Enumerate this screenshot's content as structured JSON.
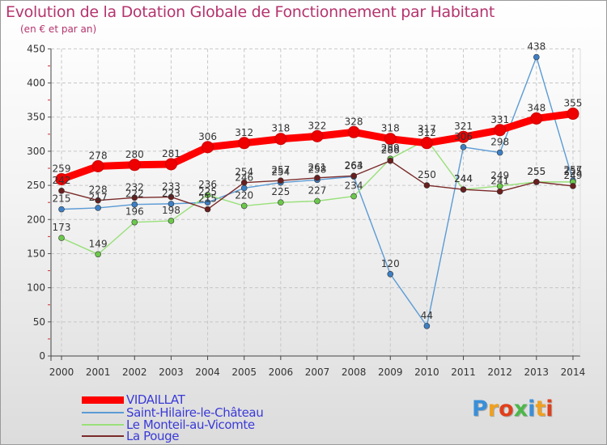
{
  "chart_data": {
    "type": "line",
    "title": "Evolution de la Dotation Globale de Fonctionnement par Habitant",
    "subtitle": "(en € et par an)",
    "xlabel": "",
    "ylabel": "",
    "ylim": [
      0,
      450
    ],
    "yticks": [
      0,
      50,
      100,
      150,
      200,
      250,
      300,
      350,
      400,
      450
    ],
    "categories": [
      "2000",
      "2001",
      "2002",
      "2003",
      "2004",
      "2005",
      "2006",
      "2007",
      "2008",
      "2009",
      "2010",
      "2011",
      "2012",
      "2013",
      "2014"
    ],
    "grid": true,
    "legend_position": "bottom-left",
    "series": [
      {
        "name": "VIDAILLAT",
        "color": "#ff0000",
        "marker_color": "#ee0000",
        "thick": true,
        "values": [
          259,
          278,
          280,
          281,
          306,
          312,
          318,
          322,
          328,
          318,
          312,
          321,
          331,
          348,
          355
        ]
      },
      {
        "name": "Saint-Hilaire-le-Château",
        "color": "#5b9bd5",
        "marker_color": "#3d7fc4",
        "thick": false,
        "values": [
          215,
          217,
          222,
          223,
          225,
          246,
          254,
          258,
          263,
          120,
          44,
          306,
          298,
          438,
          257
        ]
      },
      {
        "name": "Le Monteil-au-Vicomte",
        "color": "#99e07a",
        "marker_color": "#6cc84c",
        "thick": false,
        "values": [
          173,
          149,
          196,
          198,
          236,
          220,
          225,
          227,
          234,
          289,
          317,
          244,
          249,
          255,
          255
        ]
      },
      {
        "name": "La Pouge",
        "color": "#7a2a2a",
        "marker_color": "#6a1e1e",
        "thick": false,
        "values": [
          242,
          228,
          232,
          233,
          215,
          254,
          257,
          261,
          264,
          286,
          250,
          244,
          241,
          255,
          249
        ]
      }
    ]
  },
  "brand": {
    "letters": [
      "P",
      "r",
      "o",
      "x",
      "i",
      "t",
      "i"
    ],
    "colors": [
      "#3a8fd8",
      "#f0a020",
      "#e0401a",
      "#4cb84a",
      "#3a8fd8",
      "#f0a020",
      "#e0401a"
    ]
  }
}
